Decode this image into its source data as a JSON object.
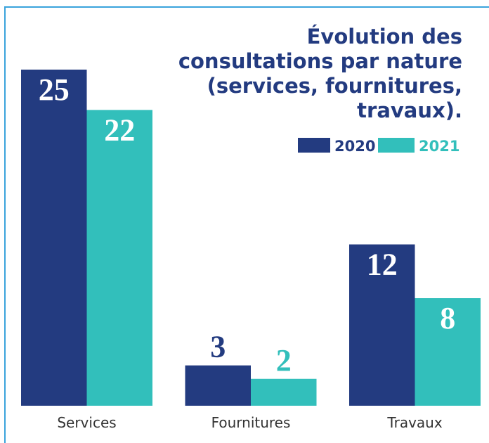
{
  "chart_data": {
    "type": "bar",
    "title": [
      "Évolution des",
      "consultations par nature",
      "(services, fournitures,",
      "travaux)."
    ],
    "categories": [
      "Services",
      "Fournitures",
      "Travaux"
    ],
    "series": [
      {
        "name": "2020",
        "color": "#233b80",
        "values": [
          25,
          3,
          12
        ]
      },
      {
        "name": "2021",
        "color": "#32bfbb",
        "values": [
          22,
          2,
          8
        ]
      }
    ],
    "legend": "top-right",
    "grid": false
  }
}
